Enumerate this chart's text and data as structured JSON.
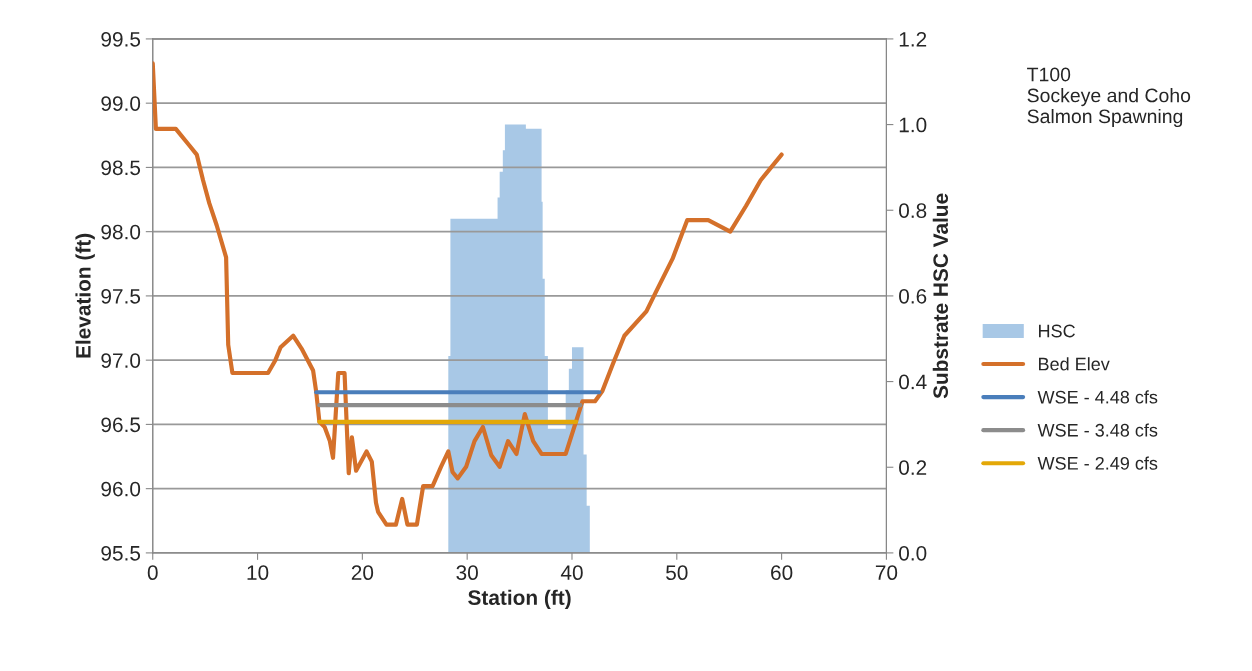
{
  "chart_data": {
    "type": "line",
    "xlabel": "Station (ft)",
    "ylabel": "Elevation (ft)",
    "y2label": "Substrate HSC Value",
    "annotations": [
      "T100\nSockeye and Coho\nSalmon Spawning"
    ],
    "xlim": [
      0,
      70
    ],
    "xticks": [
      0,
      10,
      20,
      30,
      40,
      50,
      60,
      70
    ],
    "ylim": [
      95.5,
      99.5
    ],
    "yticks": [
      {
        "value": 95.5,
        "label": "95.5"
      },
      {
        "value": 96.0,
        "label": "96.0"
      },
      {
        "value": 96.5,
        "label": "96.5"
      },
      {
        "value": 97.0,
        "label": "97.0"
      },
      {
        "value": 97.5,
        "label": "97.5"
      },
      {
        "value": 98.0,
        "label": "98.0"
      },
      {
        "value": 98.5,
        "label": "98.5"
      },
      {
        "value": 99.0,
        "label": "99.0"
      },
      {
        "value": 99.5,
        "label": "99.5"
      }
    ],
    "y2lim": [
      0,
      1.2
    ],
    "y2ticks": [
      {
        "value": 0,
        "label": "0.0"
      },
      {
        "value": 0.2,
        "label": "0.2"
      },
      {
        "value": 0.4,
        "label": "0.4"
      },
      {
        "value": 0.6,
        "label": "0.6"
      },
      {
        "value": 0.8,
        "label": "0.8"
      },
      {
        "value": 1.0,
        "label": "1.0"
      },
      {
        "value": 1.2,
        "label": "1.2"
      }
    ],
    "grid": "y",
    "legend": "right",
    "series": [
      {
        "name": "HSC",
        "type": "area",
        "axis": "y2",
        "color": "#a8c8e6",
        "x": [
          28.2,
          28.2,
          28.4,
          28.4,
          32.9,
          32.9,
          33.1,
          33.1,
          33.4,
          33.4,
          33.6,
          33.6,
          35.6,
          35.6,
          37.1,
          37.1,
          37.2,
          37.2,
          37.4,
          37.4,
          37.7,
          37.7,
          39.4,
          39.4,
          39.7,
          39.7,
          40.0,
          40.0,
          41.1,
          41.1,
          41.4,
          41.4,
          41.7,
          41.7
        ],
        "values": [
          0,
          0.46,
          0.46,
          0.78,
          0.78,
          0.83,
          0.83,
          0.89,
          0.89,
          0.94,
          0.94,
          1.0,
          1.0,
          0.99,
          0.99,
          0.82,
          0.82,
          0.64,
          0.64,
          0.46,
          0.46,
          0.29,
          0.29,
          0.38,
          0.38,
          0.43,
          0.43,
          0.48,
          0.48,
          0.23,
          0.23,
          0.11,
          0.11,
          0
        ]
      },
      {
        "name": "Bed Elev",
        "color": "#d4702a",
        "x": [
          0,
          0.3,
          2.2,
          3.4,
          4.2,
          4.8,
          5.4,
          6.1,
          7.0,
          7.2,
          7.6,
          11.0,
          11.7,
          12.2,
          13.4,
          14.2,
          15.3,
          15.6,
          15.9,
          16.4,
          16.9,
          17.2,
          17.7,
          18.3,
          18.7,
          19.0,
          19.4,
          20.4,
          20.9,
          21.3,
          21.5,
          22.3,
          23.2,
          23.8,
          24.3,
          25.2,
          25.8,
          26.7,
          27.5,
          28.2,
          28.6,
          29.1,
          29.9,
          30.7,
          31.5,
          32.3,
          33.1,
          33.9,
          34.7,
          35.5,
          36.3,
          37.1,
          39.4,
          40.1,
          41.0,
          42.2,
          42.9,
          43.9,
          45.0,
          47.1,
          48.0,
          49.6,
          51.0,
          53.0,
          55.1,
          56.6,
          58.0,
          60.0
        ],
        "values": [
          99.31,
          98.8,
          98.8,
          98.68,
          98.6,
          98.4,
          98.22,
          98.05,
          97.8,
          97.12,
          96.9,
          96.9,
          97.0,
          97.1,
          97.19,
          97.09,
          96.92,
          96.75,
          96.52,
          96.48,
          96.37,
          96.24,
          96.9,
          96.9,
          96.12,
          96.4,
          96.14,
          96.29,
          96.21,
          95.89,
          95.82,
          95.72,
          95.72,
          95.92,
          95.72,
          95.72,
          96.02,
          96.02,
          96.17,
          96.29,
          96.13,
          96.08,
          96.17,
          96.37,
          96.48,
          96.26,
          96.17,
          96.37,
          96.27,
          96.58,
          96.37,
          96.27,
          96.27,
          96.45,
          96.68,
          96.68,
          96.76,
          96.97,
          97.19,
          97.38,
          97.53,
          97.79,
          98.09,
          98.09,
          98.0,
          98.2,
          98.4,
          98.6
        ]
      },
      {
        "name": "WSE - 4.48 cfs",
        "color": "#4a7ebb",
        "x": [
          15.6,
          17.6,
          18.0,
          18.5,
          42.6
        ],
        "values": [
          96.75,
          96.75,
          null,
          96.75,
          96.75
        ]
      },
      {
        "name": "WSE - 3.48 cfs",
        "color": "#8c8c8c",
        "x": [
          15.9,
          17.6,
          18.0,
          18.5,
          40.8
        ],
        "values": [
          96.65,
          96.65,
          null,
          96.65,
          96.65
        ]
      },
      {
        "name": "WSE - 2.49 cfs",
        "color": "#e3a808",
        "x": [
          15.9,
          17.6,
          18.0,
          18.5,
          40.4
        ],
        "values": [
          96.52,
          96.52,
          null,
          96.52,
          96.52
        ]
      }
    ]
  }
}
